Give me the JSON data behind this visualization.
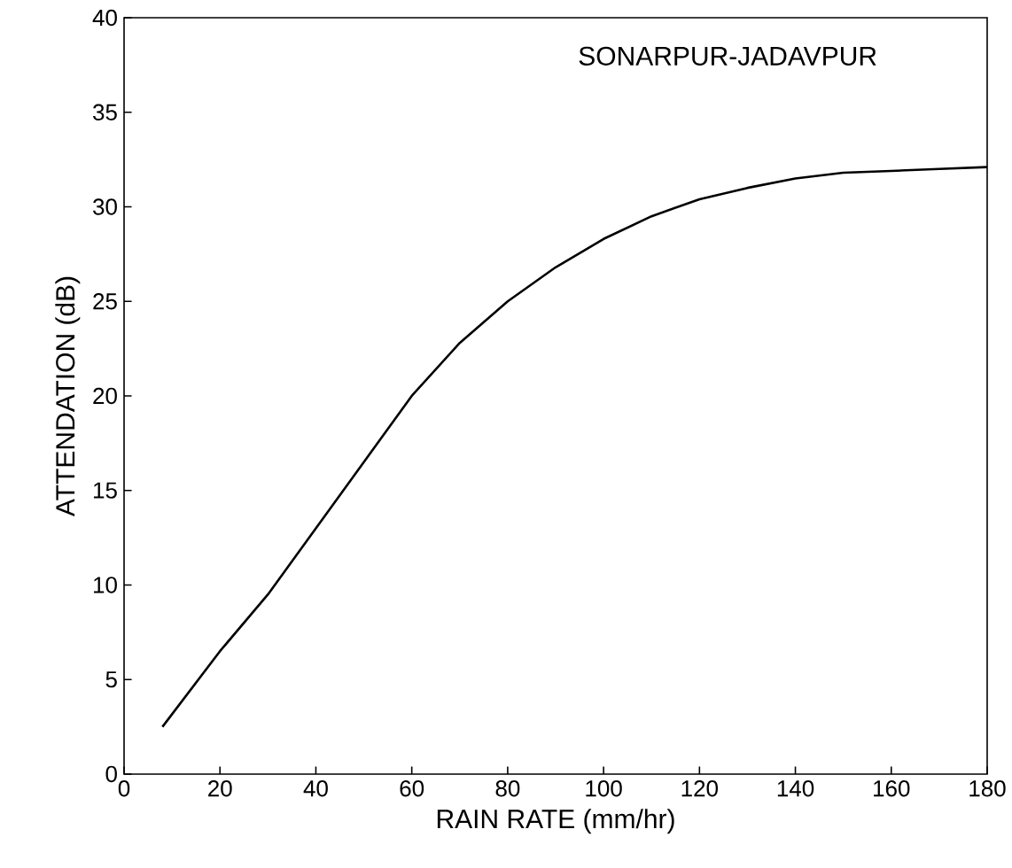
{
  "chart_data": {
    "type": "line",
    "annotations": [
      "SONARPUR-JADAVPUR"
    ],
    "xlabel": "RAIN RATE (mm/hr)",
    "ylabel": "ATTENDATION (dB)",
    "x": [
      8,
      20,
      30,
      40,
      50,
      60,
      70,
      80,
      90,
      100,
      110,
      120,
      130,
      140,
      150,
      160,
      170,
      180
    ],
    "values": [
      2.5,
      6.5,
      9.5,
      13,
      16.5,
      20,
      22.8,
      25,
      26.8,
      28.3,
      29.5,
      30.4,
      31.0,
      31.5,
      31.8,
      31.9,
      32.0,
      32.1
    ],
    "color": "#000000",
    "xlim": [
      0,
      180
    ],
    "ylim": [
      0,
      40
    ],
    "xticks": [
      0,
      20,
      40,
      60,
      80,
      100,
      120,
      140,
      160,
      180
    ],
    "yticks": [
      0,
      5,
      10,
      15,
      20,
      25,
      30,
      35,
      40
    ],
    "grid": false,
    "marker": "none",
    "line_style": "solid"
  }
}
